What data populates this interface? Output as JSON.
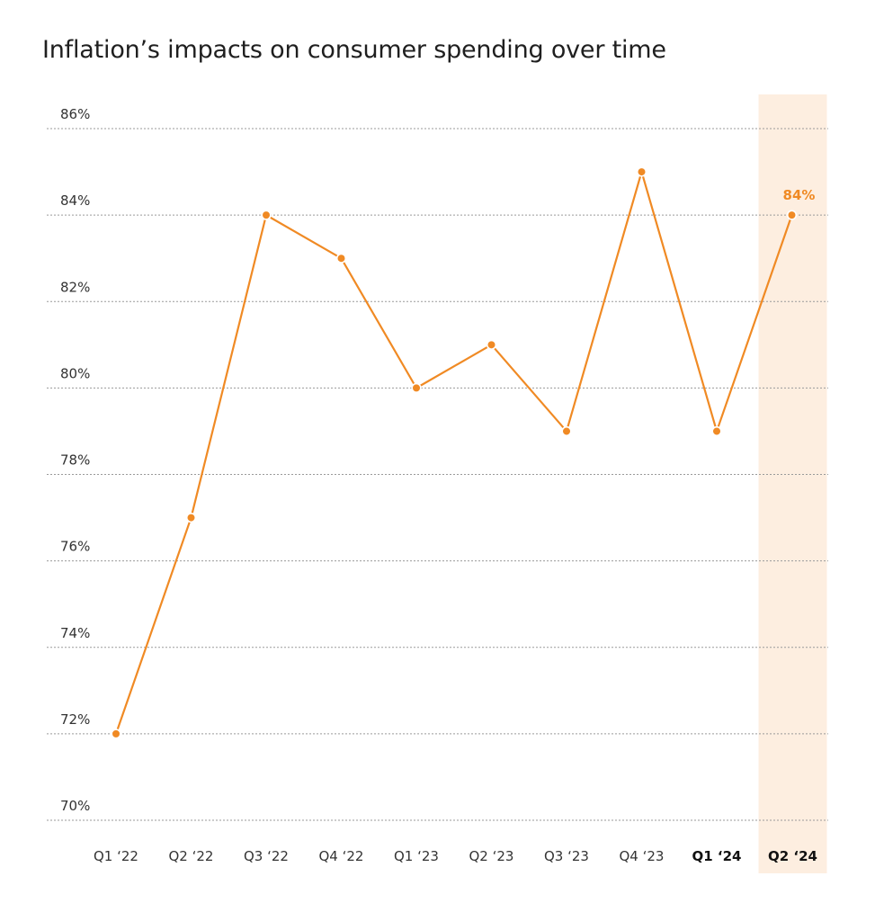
{
  "chart_data": {
    "type": "line",
    "title": "Inflation’s impacts on consumer spending over time",
    "categories": [
      "Q1 ‘22",
      "Q2 ‘22",
      "Q3 ‘22",
      "Q4 ‘22",
      "Q1 ‘23",
      "Q2 ‘23",
      "Q3 ‘23",
      "Q4 ‘23",
      "Q1 ‘24",
      "Q2 ‘24"
    ],
    "values": [
      72,
      77,
      84,
      83,
      80,
      81,
      79,
      85,
      79,
      84
    ],
    "ylim": [
      70,
      86
    ],
    "yticks": [
      86,
      84,
      82,
      80,
      78,
      76,
      74,
      72,
      70
    ],
    "ytick_labels": [
      "86%",
      "84%",
      "82%",
      "80%",
      "78%",
      "76%",
      "74%",
      "72%",
      "70%"
    ],
    "highlight_index": 9,
    "bold_indices": [
      8,
      9
    ],
    "data_label": "84%",
    "line_color": "#f08a24",
    "highlight_color": "#fdeee0",
    "grid": true
  }
}
